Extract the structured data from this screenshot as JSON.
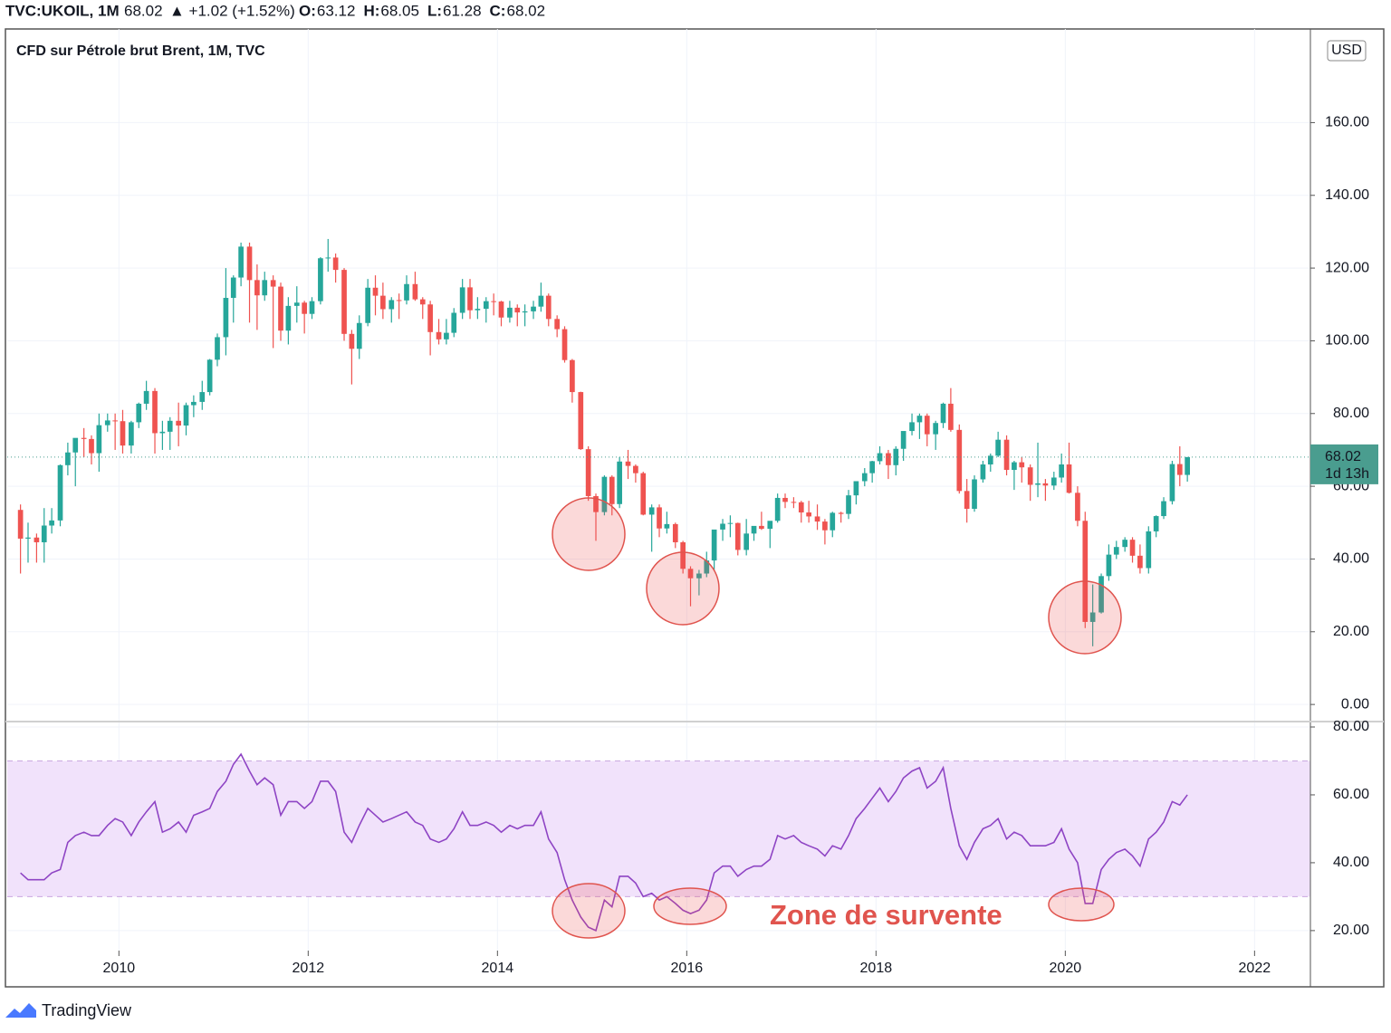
{
  "header": {
    "symbol": "TVC:UKOIL, 1M",
    "price": "68.02",
    "change": "▲ +1.02 (+1.52%)",
    "ohlc": [
      {
        "key": "O:",
        "value": "63.12"
      },
      {
        "key": "H:",
        "value": "68.05"
      },
      {
        "key": "L:",
        "value": "61.28"
      },
      {
        "key": "C:",
        "value": "68.02"
      }
    ]
  },
  "footer": "TradingView",
  "chart_data": [
    {
      "type": "candlestick",
      "title": "CFD sur Pétrole brut Brent, 1M, TVC",
      "currency": "USD",
      "up_color": "#26a69a",
      "down_color": "#ef5350",
      "grid": true,
      "last_price": 68.02,
      "countdown": "1d 13h",
      "last_color": "#4a9d8f",
      "xlim": [
        2008.82,
        2022.59
      ],
      "xticks": [
        2010,
        2012,
        2014,
        2016,
        2018,
        2020,
        2022
      ],
      "ylim": [
        -4.7,
        185
      ],
      "yticks": [
        {
          "value": 0,
          "label": "0.00"
        },
        {
          "value": 20,
          "label": "20.00"
        },
        {
          "value": 40,
          "label": "40.00"
        },
        {
          "value": 60,
          "label": "60.00"
        },
        {
          "value": 80,
          "label": "80.00"
        },
        {
          "value": 100,
          "label": "100.00"
        },
        {
          "value": 120,
          "label": "120.00"
        },
        {
          "value": 140,
          "label": "140.00"
        },
        {
          "value": 160,
          "label": "160.00"
        }
      ],
      "x": [
        2008.96,
        2009.04,
        2009.13,
        2009.21,
        2009.29,
        2009.38,
        2009.46,
        2009.54,
        2009.63,
        2009.71,
        2009.79,
        2009.88,
        2009.96,
        2010.04,
        2010.13,
        2010.21,
        2010.29,
        2010.38,
        2010.46,
        2010.54,
        2010.63,
        2010.71,
        2010.79,
        2010.88,
        2010.96,
        2011.04,
        2011.13,
        2011.21,
        2011.29,
        2011.38,
        2011.46,
        2011.54,
        2011.63,
        2011.71,
        2011.79,
        2011.88,
        2011.96,
        2012.04,
        2012.13,
        2012.21,
        2012.29,
        2012.38,
        2012.46,
        2012.54,
        2012.63,
        2012.71,
        2012.79,
        2012.88,
        2012.96,
        2013.04,
        2013.13,
        2013.21,
        2013.29,
        2013.38,
        2013.46,
        2013.54,
        2013.63,
        2013.71,
        2013.79,
        2013.88,
        2013.96,
        2014.04,
        2014.13,
        2014.21,
        2014.29,
        2014.38,
        2014.46,
        2014.54,
        2014.63,
        2014.71,
        2014.79,
        2014.88,
        2014.96,
        2015.04,
        2015.13,
        2015.21,
        2015.29,
        2015.38,
        2015.46,
        2015.54,
        2015.63,
        2015.71,
        2015.79,
        2015.88,
        2015.96,
        2016.04,
        2016.13,
        2016.21,
        2016.29,
        2016.38,
        2016.46,
        2016.54,
        2016.63,
        2016.71,
        2016.79,
        2016.88,
        2016.96,
        2017.04,
        2017.13,
        2017.21,
        2017.29,
        2017.38,
        2017.46,
        2017.54,
        2017.63,
        2017.71,
        2017.79,
        2017.88,
        2017.96,
        2018.04,
        2018.13,
        2018.21,
        2018.29,
        2018.38,
        2018.46,
        2018.54,
        2018.63,
        2018.71,
        2018.79,
        2018.88,
        2018.96,
        2019.04,
        2019.13,
        2019.21,
        2019.29,
        2019.38,
        2019.46,
        2019.54,
        2019.63,
        2019.71,
        2019.79,
        2019.88,
        2019.96,
        2020.04,
        2020.13,
        2020.21,
        2020.29,
        2020.38,
        2020.46,
        2020.54,
        2020.63,
        2020.71,
        2020.79,
        2020.88,
        2020.96,
        2021.04,
        2021.13,
        2021.21,
        2021.29
      ],
      "ohlc": [
        [
          53.5,
          55,
          36,
          45.6
        ],
        [
          45.6,
          50,
          39,
          45.9
        ],
        [
          45.9,
          47,
          39,
          44.6
        ],
        [
          44.6,
          54,
          39,
          49.2
        ],
        [
          49.2,
          54,
          47,
          50.6
        ],
        [
          50.6,
          66,
          49,
          65.8
        ],
        [
          65.8,
          72,
          63,
          69.3
        ],
        [
          69.3,
          73,
          60,
          73.3
        ],
        [
          73.3,
          76,
          68,
          73.0
        ],
        [
          73.0,
          74,
          66,
          69.1
        ],
        [
          69.1,
          80,
          64,
          76.8
        ],
        [
          76.8,
          80,
          75,
          78.1
        ],
        [
          78.1,
          80,
          70,
          77.9
        ],
        [
          77.9,
          81,
          69,
          71.2
        ],
        [
          71.2,
          78,
          69,
          77.6
        ],
        [
          77.6,
          83,
          76,
          82.7
        ],
        [
          82.7,
          89,
          81,
          86.2
        ],
        [
          86.2,
          87,
          69,
          74.6
        ],
        [
          74.6,
          78,
          70,
          75.0
        ],
        [
          75.0,
          79,
          70,
          78.0
        ],
        [
          78.0,
          83,
          71,
          76.7
        ],
        [
          76.7,
          83,
          74,
          82.3
        ],
        [
          82.3,
          85,
          79,
          83.2
        ],
        [
          83.2,
          89,
          81,
          85.9
        ],
        [
          85.9,
          95,
          85,
          94.8
        ],
        [
          94.8,
          102,
          93,
          101.0
        ],
        [
          101.0,
          120,
          96,
          111.8
        ],
        [
          111.8,
          118,
          105,
          117.4
        ],
        [
          117.4,
          127,
          115,
          125.9
        ],
        [
          125.9,
          127,
          105,
          116.7
        ],
        [
          116.7,
          121,
          103,
          112.5
        ],
        [
          112.5,
          119,
          111,
          116.7
        ],
        [
          116.7,
          118,
          98,
          114.9
        ],
        [
          114.9,
          116,
          100,
          102.8
        ],
        [
          102.8,
          112,
          99,
          109.6
        ],
        [
          109.6,
          115,
          105,
          110.5
        ],
        [
          110.5,
          111,
          102,
          107.4
        ],
        [
          107.4,
          112,
          106,
          110.9
        ],
        [
          110.9,
          123,
          110,
          122.7
        ],
        [
          122.7,
          128,
          119,
          122.9
        ],
        [
          122.9,
          124,
          116,
          119.5
        ],
        [
          119.5,
          120,
          100,
          101.9
        ],
        [
          101.9,
          103,
          88,
          97.8
        ],
        [
          97.8,
          107,
          95,
          104.9
        ],
        [
          104.9,
          117,
          104,
          114.6
        ],
        [
          114.6,
          118,
          107,
          112.4
        ],
        [
          112.4,
          116,
          106,
          108.7
        ],
        [
          108.7,
          112,
          105,
          111.2
        ],
        [
          111.2,
          113,
          106,
          111.1
        ],
        [
          111.1,
          118,
          110,
          115.6
        ],
        [
          115.6,
          119,
          111,
          111.4
        ],
        [
          111.4,
          112,
          106,
          110.0
        ],
        [
          110.0,
          111,
          96,
          102.4
        ],
        [
          102.4,
          106,
          99,
          100.4
        ],
        [
          100.4,
          106,
          99,
          102.2
        ],
        [
          102.2,
          109,
          101,
          107.7
        ],
        [
          107.7,
          117,
          106,
          114.7
        ],
        [
          114.7,
          117,
          106,
          108.4
        ],
        [
          108.4,
          112,
          106,
          108.8
        ],
        [
          108.8,
          112,
          105,
          110.9
        ],
        [
          110.9,
          113,
          107,
          110.8
        ],
        [
          110.8,
          111,
          104,
          106.4
        ],
        [
          106.4,
          111,
          105,
          109.1
        ],
        [
          109.1,
          110,
          104,
          107.8
        ],
        [
          107.8,
          110,
          104,
          108.1
        ],
        [
          108.1,
          111,
          106,
          109.4
        ],
        [
          109.4,
          116,
          108,
          112.4
        ],
        [
          112.4,
          113,
          104,
          106.0
        ],
        [
          106.0,
          107,
          101,
          103.2
        ],
        [
          103.2,
          104,
          94,
          94.7
        ],
        [
          94.7,
          95,
          83,
          85.9
        ],
        [
          85.9,
          86,
          70,
          70.2
        ],
        [
          70.2,
          71,
          56,
          57.3
        ],
        [
          57.3,
          58,
          45,
          52.9
        ],
        [
          52.9,
          63,
          52,
          62.6
        ],
        [
          62.6,
          63,
          52,
          55.1
        ],
        [
          55.1,
          68,
          54,
          66.8
        ],
        [
          66.8,
          70,
          62,
          65.6
        ],
        [
          65.6,
          66,
          61,
          63.6
        ],
        [
          63.6,
          64,
          52,
          52.2
        ],
        [
          52.2,
          55,
          42,
          54.2
        ],
        [
          54.2,
          55,
          46,
          48.4
        ],
        [
          48.4,
          53,
          47,
          49.6
        ],
        [
          49.6,
          50,
          43,
          44.6
        ],
        [
          44.6,
          45,
          36,
          37.3
        ],
        [
          37.3,
          38,
          27,
          34.7
        ],
        [
          34.7,
          37,
          30,
          36.0
        ],
        [
          36.0,
          42,
          35,
          39.6
        ],
        [
          39.6,
          48,
          37,
          48.1
        ],
        [
          48.1,
          51,
          45,
          49.7
        ],
        [
          49.7,
          52,
          46,
          49.9
        ],
        [
          49.9,
          50,
          41,
          42.5
        ],
        [
          42.5,
          51,
          41,
          47.0
        ],
        [
          47.0,
          49,
          45,
          49.1
        ],
        [
          49.1,
          53,
          48,
          48.3
        ],
        [
          48.3,
          50,
          43,
          50.5
        ],
        [
          50.5,
          58,
          50,
          56.8
        ],
        [
          56.8,
          58,
          54,
          55.7
        ],
        [
          55.7,
          57,
          54,
          55.6
        ],
        [
          55.6,
          56,
          50,
          52.8
        ],
        [
          52.8,
          56,
          50,
          51.7
        ],
        [
          51.7,
          55,
          48,
          50.3
        ],
        [
          50.3,
          51,
          44,
          47.9
        ],
        [
          47.9,
          53,
          46,
          52.7
        ],
        [
          52.7,
          53,
          50,
          52.4
        ],
        [
          52.4,
          59,
          51,
          57.5
        ],
        [
          57.5,
          61,
          55,
          61.4
        ],
        [
          61.4,
          65,
          60,
          63.6
        ],
        [
          63.6,
          67,
          61,
          66.9
        ],
        [
          66.9,
          71,
          66,
          69.1
        ],
        [
          69.1,
          70,
          62,
          65.8
        ],
        [
          65.8,
          71,
          63,
          70.3
        ],
        [
          70.3,
          75,
          67,
          75.2
        ],
        [
          75.2,
          80,
          74,
          77.6
        ],
        [
          77.6,
          80,
          73,
          79.4
        ],
        [
          79.4,
          80,
          71,
          74.3
        ],
        [
          74.3,
          78,
          70,
          77.4
        ],
        [
          77.4,
          83,
          76,
          82.7
        ],
        [
          82.7,
          87,
          75,
          75.5
        ],
        [
          75.5,
          77,
          58,
          58.7
        ],
        [
          58.7,
          62,
          50,
          53.8
        ],
        [
          53.8,
          63,
          53,
          61.9
        ],
        [
          61.9,
          67,
          61,
          66.0
        ],
        [
          66.0,
          69,
          64,
          68.4
        ],
        [
          68.4,
          75,
          68,
          72.8
        ],
        [
          72.8,
          74,
          63,
          64.5
        ],
        [
          64.5,
          67,
          59,
          66.6
        ],
        [
          66.6,
          68,
          61,
          65.2
        ],
        [
          65.2,
          66,
          56,
          60.4
        ],
        [
          60.4,
          72,
          57,
          60.8
        ],
        [
          60.8,
          62,
          56,
          60.2
        ],
        [
          60.2,
          64,
          59,
          62.4
        ],
        [
          62.4,
          69,
          61,
          66.0
        ],
        [
          66.0,
          72,
          58,
          58.2
        ],
        [
          58.2,
          60,
          49,
          50.5
        ],
        [
          50.5,
          53,
          21,
          22.7
        ],
        [
          22.7,
          33,
          16,
          25.3
        ],
        [
          25.3,
          36,
          25,
          35.3
        ],
        [
          35.3,
          44,
          34,
          41.2
        ],
        [
          41.2,
          45,
          40,
          43.3
        ],
        [
          43.3,
          46,
          42,
          45.3
        ],
        [
          45.3,
          46,
          39,
          40.9
        ],
        [
          40.9,
          44,
          36,
          37.5
        ],
        [
          37.5,
          49,
          36,
          47.6
        ],
        [
          47.6,
          52,
          46,
          51.8
        ],
        [
          51.8,
          57,
          51,
          55.9
        ],
        [
          55.9,
          67,
          55,
          66.1
        ],
        [
          66.1,
          71,
          60,
          63.12
        ],
        [
          63.12,
          68.05,
          61.28,
          68.02
        ]
      ]
    },
    {
      "type": "line",
      "color": "#8e44c4",
      "band": [
        30,
        70
      ],
      "band_color": "#f1e2fb",
      "annotation": "Zone de survente",
      "ylim": [
        14.1,
        81.6
      ],
      "yticks": [
        {
          "value": 20,
          "label": "20.00"
        },
        {
          "value": 40,
          "label": "40.00"
        },
        {
          "value": 60,
          "label": "60.00"
        },
        {
          "value": 80,
          "label": "80.00"
        }
      ],
      "values": [
        37,
        35,
        35,
        35,
        37,
        38,
        46,
        48,
        49,
        48,
        48,
        51,
        53,
        52,
        48,
        52,
        55,
        58,
        49,
        50,
        52,
        49,
        54,
        55,
        56,
        61,
        64,
        69,
        72,
        67,
        63,
        65,
        63,
        54,
        58,
        58,
        56,
        58,
        64,
        64,
        61,
        49,
        46,
        51,
        56,
        54,
        52,
        53,
        54,
        55,
        52,
        51,
        47,
        46,
        47,
        50,
        55,
        51,
        51,
        52,
        51,
        49,
        51,
        50,
        51,
        51,
        55,
        47,
        43,
        35,
        29,
        24,
        21,
        20,
        29,
        27,
        36,
        36,
        34,
        30,
        31,
        29,
        30,
        28,
        26,
        25,
        26,
        29,
        37,
        39,
        39,
        36,
        38,
        39,
        39,
        41,
        48,
        47,
        48,
        46,
        45,
        44,
        42,
        45,
        44,
        48,
        53,
        56,
        59,
        62,
        58,
        61,
        65,
        67,
        68,
        62,
        64,
        68,
        56,
        45,
        41,
        46,
        50,
        51,
        53,
        47,
        49,
        48,
        45,
        45,
        45,
        46,
        50,
        44,
        40,
        28,
        28,
        38,
        41,
        43,
        44,
        42,
        39,
        47,
        49,
        52,
        58,
        57,
        60
      ]
    }
  ]
}
